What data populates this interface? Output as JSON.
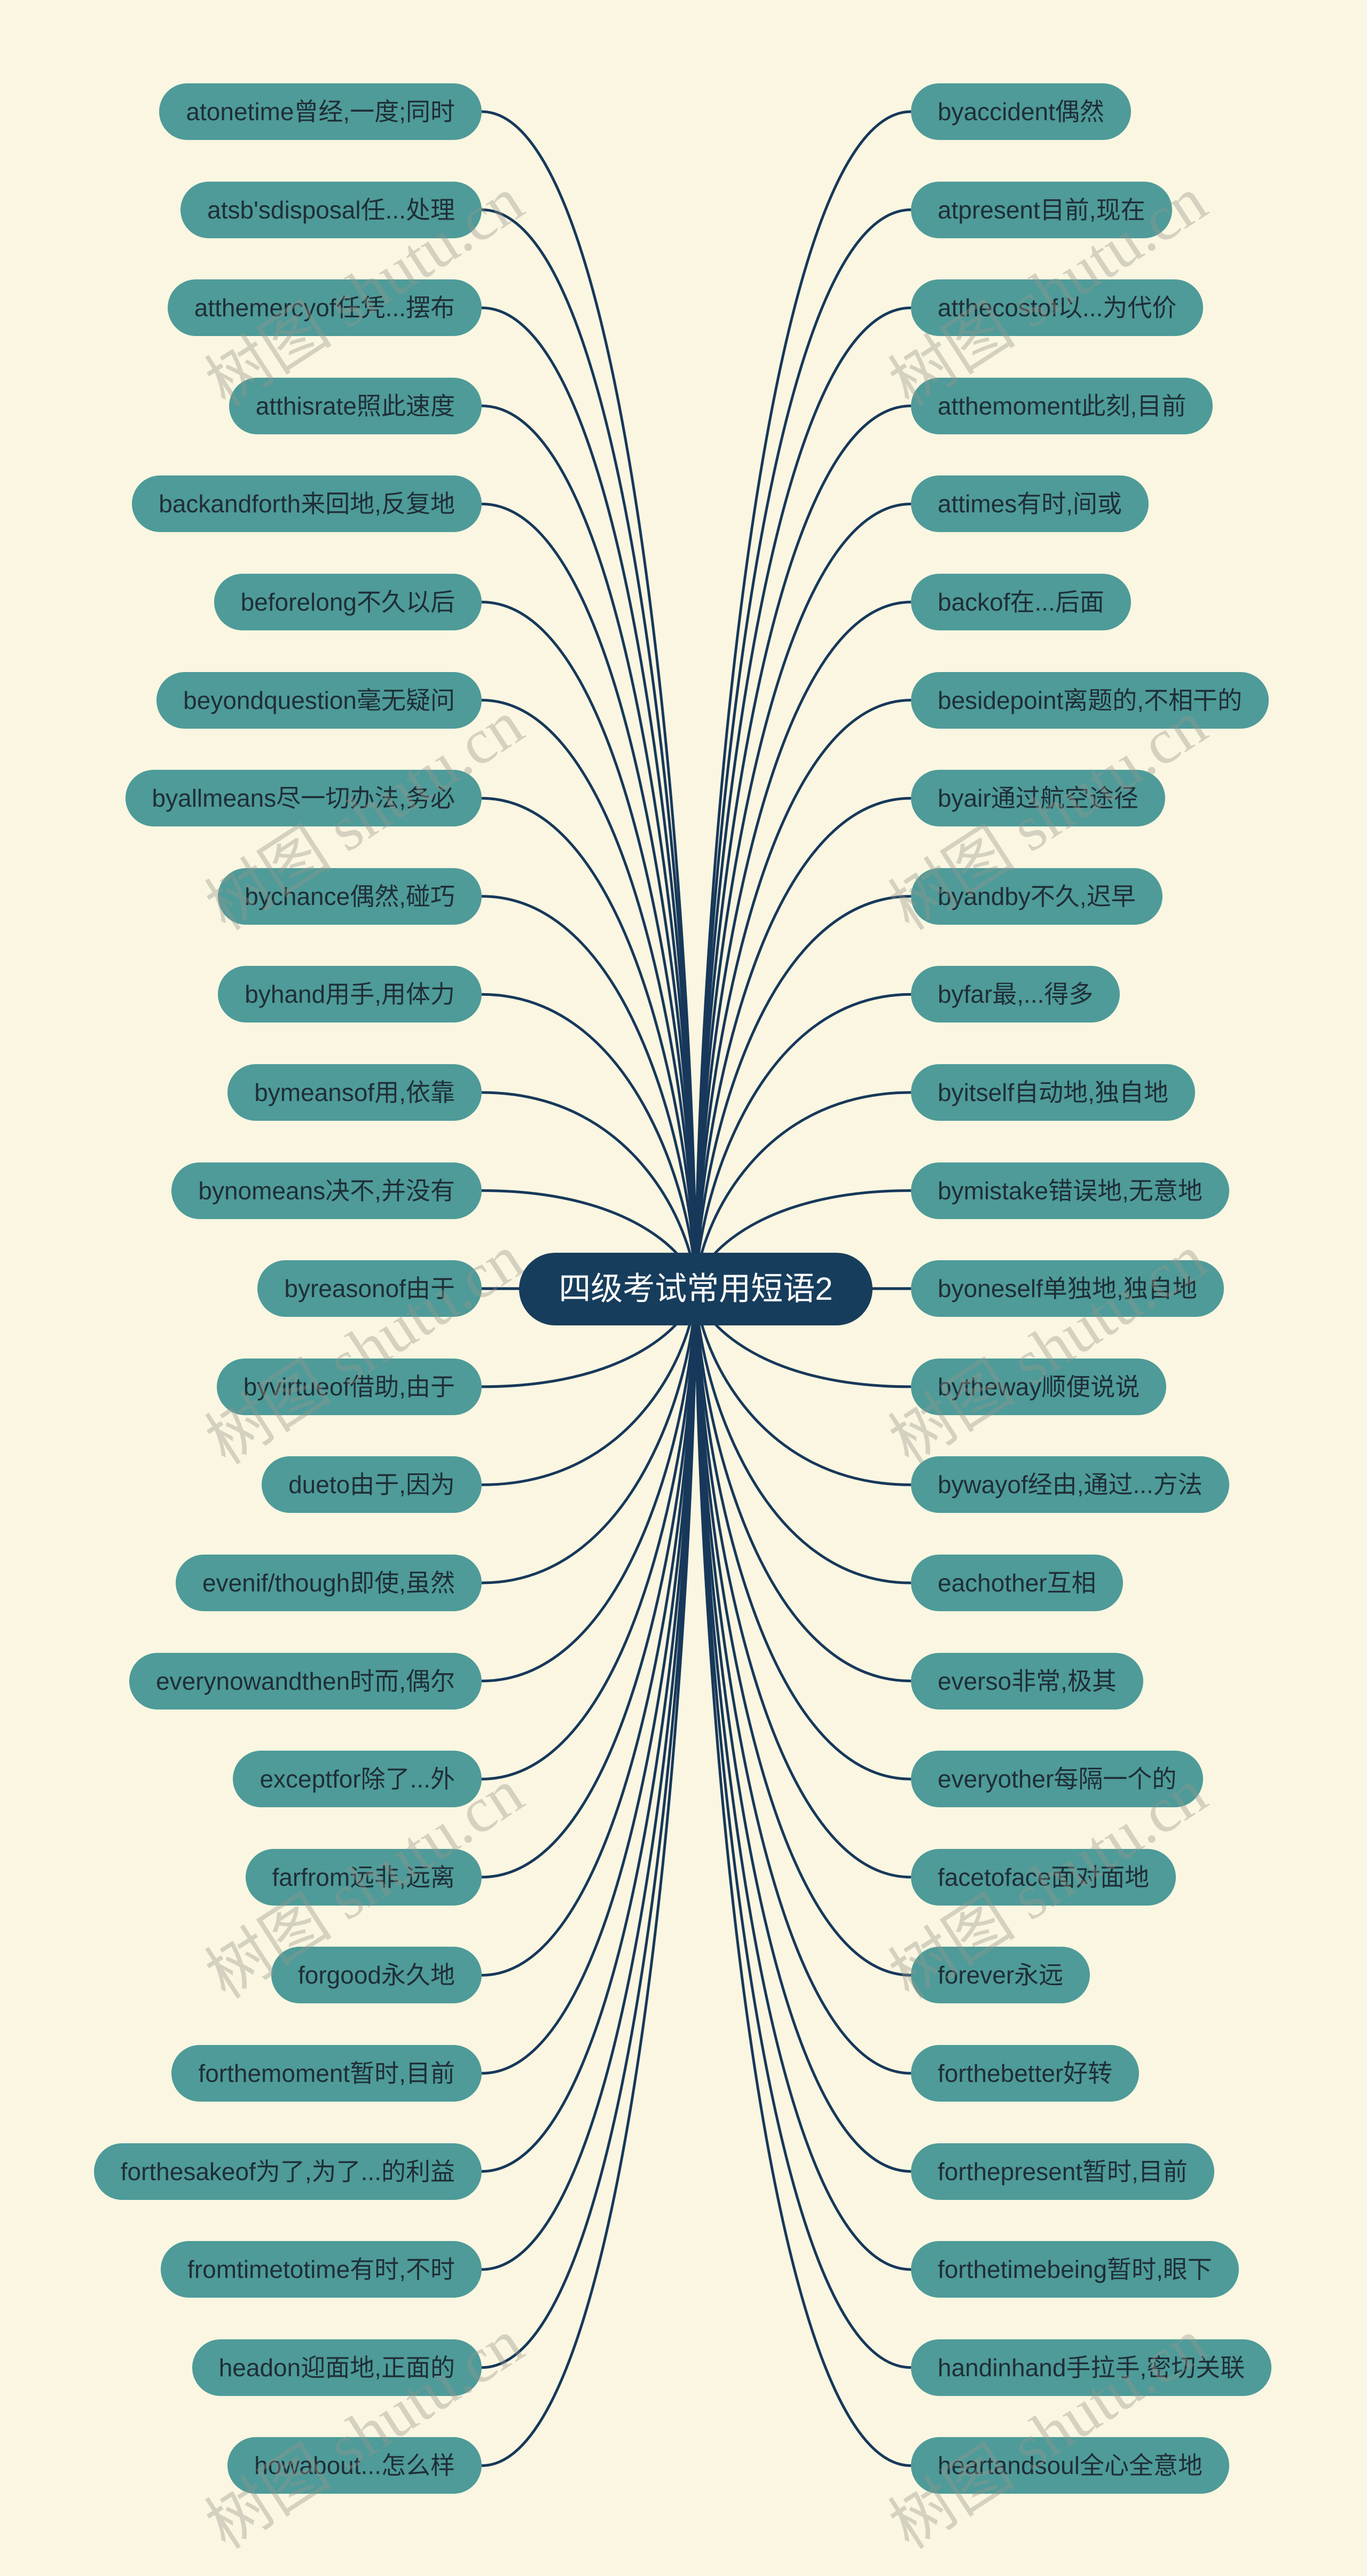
{
  "title": "四级考试常用短语2",
  "watermark": "树图 shutu.cn",
  "colors": {
    "background": "#faf6e1",
    "node": "#4e9b99",
    "node_text": "#1f2e36",
    "center": "#173d5c",
    "line": "#17385a"
  },
  "left_items": [
    "atonetime曾经,一度;同时",
    "atsb'sdisposal任...处理",
    "atthemercyof任凭...摆布",
    "atthisrate照此速度",
    "backandforth来回地,反复地",
    "beforelong不久以后",
    "beyondquestion毫无疑问",
    "byallmeans尽一切办法,务必",
    "bychance偶然,碰巧",
    "byhand用手,用体力",
    "bymeansof用,依靠",
    "bynomeans决不,并没有",
    "byreasonof由于",
    "byvirtueof借助,由于",
    "dueto由于,因为",
    "evenif/though即使,虽然",
    "everynowandthen时而,偶尔",
    "exceptfor除了...外",
    "farfrom远非,远离",
    "forgood永久地",
    "forthemoment暂时,目前",
    "forthesakeof为了,为了...的利益",
    "fromtimetotime有时,不时",
    "headon迎面地,正面的",
    "howabout...怎么样"
  ],
  "right_items": [
    "byaccident偶然",
    "atpresent目前,现在",
    "atthecostof以...为代价",
    "atthemoment此刻,目前",
    "attimes有时,间或",
    "backof在...后面",
    "besidepoint离题的,不相干的",
    "byair通过航空途径",
    "byandby不久,迟早",
    "byfar最,...得多",
    "byitself自动地,独自地",
    "bymistake错误地,无意地",
    "byoneself单独地,独自地",
    "bytheway顺便说说",
    "bywayof经由,通过...方法",
    "eachother互相",
    "everso非常,极其",
    "everyother每隔一个的",
    "facetoface面对面地",
    "forever永远",
    "forthebetter好转",
    "forthepresent暂时,目前",
    "forthetimebeing暂时,眼下",
    "handinhand手拉手,密切关联",
    "heartandsoul全心全意地"
  ]
}
